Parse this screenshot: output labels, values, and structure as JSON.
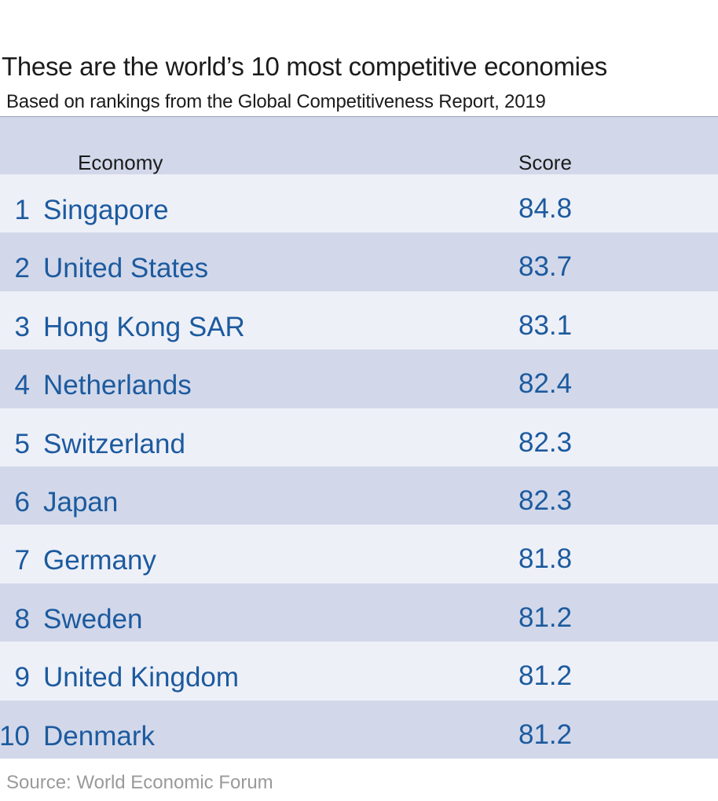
{
  "title": "These are the world’s 10 most competitive economies",
  "subtitle": "Based on rankings from the Global Competitiveness Report, 2019",
  "source": "Source: World Economic Forum",
  "colors": {
    "row_light": "#eef0f8",
    "row_dark": "#d2d8ea",
    "text_blue": "#1c5a9e"
  },
  "chart_data": {
    "type": "table",
    "title": "These are the world’s 10 most competitive economies",
    "subtitle": "Based on rankings from the Global Competitiveness Report, 2019",
    "columns": [
      "Economy",
      "Score"
    ],
    "rows": [
      {
        "rank": "1",
        "economy": "Singapore",
        "score": "84.8"
      },
      {
        "rank": "2",
        "economy": "United States",
        "score": "83.7"
      },
      {
        "rank": "3",
        "economy": "Hong Kong SAR",
        "score": "83.1"
      },
      {
        "rank": "4",
        "economy": "Netherlands",
        "score": "82.4"
      },
      {
        "rank": "5",
        "economy": "Switzerland",
        "score": "82.3"
      },
      {
        "rank": "6",
        "economy": "Japan",
        "score": "82.3"
      },
      {
        "rank": "7",
        "economy": "Germany",
        "score": "81.8"
      },
      {
        "rank": "8",
        "economy": "Sweden",
        "score": "81.2"
      },
      {
        "rank": "9",
        "economy": "United Kingdom",
        "score": "81.2"
      },
      {
        "rank": "10",
        "economy": "Denmark",
        "score": "81.2"
      }
    ]
  }
}
